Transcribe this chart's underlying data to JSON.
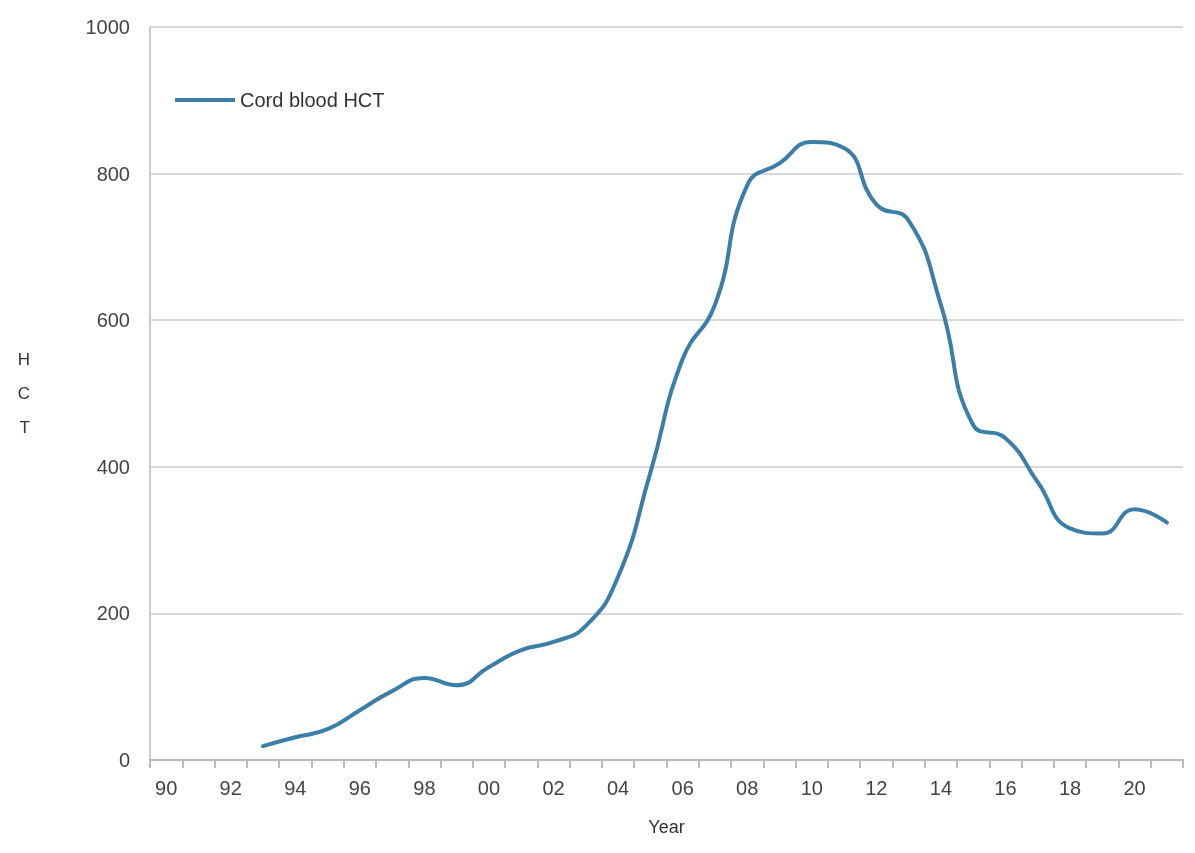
{
  "chart_data": {
    "type": "line",
    "xlabel": "Year",
    "ylabel": "HCT",
    "categories": [
      "90",
      null,
      "92",
      null,
      "94",
      null,
      "96",
      null,
      "98",
      null,
      "00",
      null,
      "02",
      null,
      "04",
      null,
      "06",
      null,
      "08",
      null,
      "10",
      null,
      "12",
      null,
      "14",
      null,
      "16",
      null,
      "18",
      null,
      "20",
      null
    ],
    "series": [
      {
        "name": "Cord blood HCT",
        "color": "#3b7ea8",
        "values": [
          null,
          null,
          null,
          19,
          31,
          42,
          68,
          94,
          112,
          102,
          127,
          150,
          161,
          183,
          250,
          392,
          547,
          621,
          784,
          814,
          843,
          835,
          758,
          736,
          621,
          457,
          439,
          379,
          316,
          309,
          342,
          324
        ]
      }
    ],
    "ylim": [
      0,
      1000
    ],
    "yticks": [
      0,
      200,
      400,
      600,
      800,
      1000
    ],
    "grid": "y",
    "legend": "top left",
    "marker": "none",
    "line_style": "solid"
  }
}
